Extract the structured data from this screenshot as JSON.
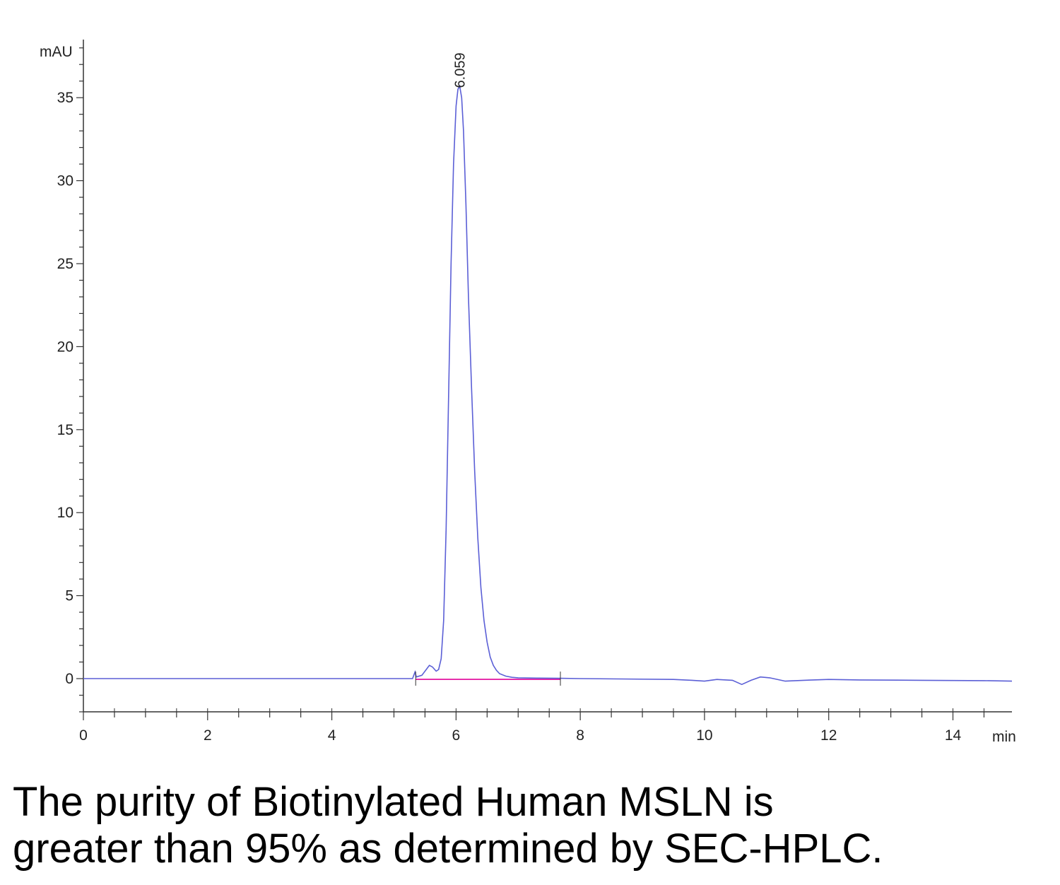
{
  "chart_data": {
    "type": "line",
    "title": "",
    "ylabel": "mAU",
    "xlabel": "min",
    "xlim": [
      0,
      14.95
    ],
    "ylim": [
      -2,
      38.5
    ],
    "x_ticks": [
      0,
      2,
      4,
      6,
      8,
      10,
      12,
      14
    ],
    "y_ticks": [
      0,
      5,
      10,
      15,
      20,
      25,
      30,
      35
    ],
    "grid": false,
    "legend": "none",
    "colors": {
      "trace": "#5b5fd6",
      "baseline": "#e0009a",
      "axis": "#333333"
    },
    "peak_annotations": [
      {
        "label": "6.059",
        "x": 6.059,
        "y": 35.5
      }
    ],
    "integration_baseline": {
      "x": [
        5.35,
        7.68
      ],
      "y": [
        0,
        0
      ]
    },
    "series": [
      {
        "x": [
          0,
          4.6,
          5.3,
          5.34,
          5.36,
          5.45,
          5.52,
          5.57,
          5.62,
          5.68,
          5.72,
          5.76,
          5.8,
          5.84,
          5.88,
          5.92,
          5.96,
          6.0,
          6.03,
          6.059,
          6.09,
          6.12,
          6.16,
          6.2,
          6.25,
          6.3,
          6.35,
          6.4,
          6.45,
          6.5,
          6.55,
          6.6,
          6.65,
          6.7,
          6.8,
          6.9,
          7.0,
          7.3,
          7.68,
          8.0,
          9.5,
          9.8,
          10.0,
          10.2,
          10.45,
          10.6,
          10.75,
          10.9,
          11.05,
          11.3,
          11.6,
          12.0,
          12.5,
          13.5,
          14.5,
          14.95
        ],
        "y": [
          0,
          0,
          0,
          0.4,
          0.1,
          0.2,
          0.55,
          0.8,
          0.7,
          0.45,
          0.55,
          1.2,
          3.5,
          9.0,
          17.0,
          25.0,
          31.0,
          34.5,
          35.5,
          35.7,
          35.0,
          33.0,
          28.5,
          23.0,
          17.5,
          12.5,
          8.5,
          5.5,
          3.5,
          2.2,
          1.3,
          0.8,
          0.5,
          0.3,
          0.15,
          0.08,
          0.05,
          0.03,
          0.02,
          0,
          -0.05,
          -0.1,
          -0.15,
          -0.05,
          -0.1,
          -0.35,
          -0.1,
          0.1,
          0.05,
          -0.15,
          -0.1,
          -0.05,
          -0.08,
          -0.1,
          -0.12,
          -0.15
        ]
      }
    ]
  },
  "caption": {
    "line1": "The purity of Biotinylated Human MSLN is",
    "line2": "greater than 95% as determined by SEC-HPLC."
  }
}
